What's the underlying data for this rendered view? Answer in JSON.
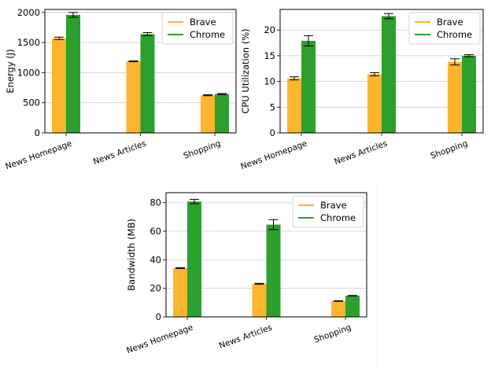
{
  "chart_data": [
    {
      "type": "bar",
      "categories": [
        "News Homepage",
        "News Articles",
        "Shopping"
      ],
      "ylabel": "Energy (J)",
      "ylim": [
        0,
        2050
      ],
      "yticks": [
        0,
        500,
        1000,
        1500,
        2000
      ],
      "grid": "horizontal",
      "legend_position": "top-right",
      "series": [
        {
          "name": "Brave",
          "color": "#ffb42e",
          "values": [
            1570,
            1190,
            625
          ],
          "errors": [
            20,
            8,
            8
          ]
        },
        {
          "name": "Chrome",
          "color": "#2ca02c",
          "values": [
            1960,
            1640,
            645
          ],
          "errors": [
            40,
            25,
            8
          ]
        }
      ]
    },
    {
      "type": "bar",
      "categories": [
        "News Homepage",
        "News Articles",
        "Shopping"
      ],
      "ylabel": "CPU Utilization (%)",
      "ylim": [
        0,
        24
      ],
      "yticks": [
        0,
        5,
        10,
        15,
        20
      ],
      "grid": "horizontal",
      "legend_position": "top-right",
      "series": [
        {
          "name": "Brave",
          "color": "#ffb42e",
          "values": [
            10.6,
            11.4,
            13.8
          ],
          "errors": [
            0.3,
            0.3,
            0.6
          ]
        },
        {
          "name": "Chrome",
          "color": "#2ca02c",
          "values": [
            17.9,
            22.7,
            15.0
          ],
          "errors": [
            1.0,
            0.5,
            0.2
          ]
        }
      ]
    },
    {
      "type": "bar",
      "categories": [
        "News Homepage",
        "News Articles",
        "Shopping"
      ],
      "ylabel": "Bandwidth (MB)",
      "ylim": [
        0,
        87
      ],
      "yticks": [
        0,
        20,
        40,
        60,
        80
      ],
      "grid": "horizontal",
      "legend_position": "top-right",
      "series": [
        {
          "name": "Brave",
          "color": "#ffb42e",
          "values": [
            34.2,
            23.2,
            11.1
          ],
          "errors": [
            0.3,
            0.3,
            0.2
          ]
        },
        {
          "name": "Chrome",
          "color": "#2ca02c",
          "values": [
            80.8,
            64.6,
            14.8
          ],
          "errors": [
            1.5,
            3.5,
            0.2
          ]
        }
      ]
    }
  ]
}
